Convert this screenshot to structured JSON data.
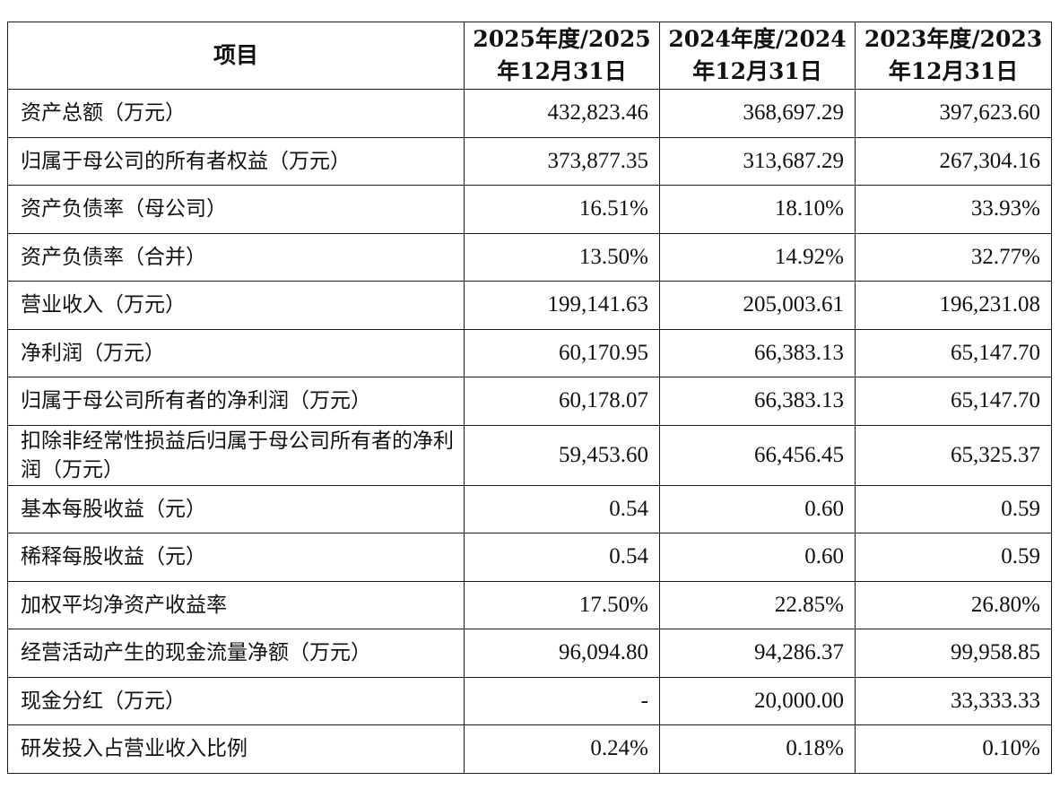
{
  "table": {
    "headers": [
      "项目",
      "2025年度/2025年12月31日",
      "2024年度/2024年12月31日",
      "2023年度/2023年12月31日"
    ],
    "rows": [
      {
        "label": "资产总额（万元）",
        "v2025": "432,823.46",
        "v2024": "368,697.29",
        "v2023": "397,623.60"
      },
      {
        "label": "归属于母公司的所有者权益（万元）",
        "v2025": "373,877.35",
        "v2024": "313,687.29",
        "v2023": "267,304.16"
      },
      {
        "label": "资产负债率（母公司）",
        "v2025": "16.51%",
        "v2024": "18.10%",
        "v2023": "33.93%"
      },
      {
        "label": "资产负债率（合并）",
        "v2025": "13.50%",
        "v2024": "14.92%",
        "v2023": "32.77%"
      },
      {
        "label": "营业收入（万元）",
        "v2025": "199,141.63",
        "v2024": "205,003.61",
        "v2023": "196,231.08"
      },
      {
        "label": "净利润（万元）",
        "v2025": "60,170.95",
        "v2024": "66,383.13",
        "v2023": "65,147.70"
      },
      {
        "label": "归属于母公司所有者的净利润（万元）",
        "v2025": "60,178.07",
        "v2024": "66,383.13",
        "v2023": "65,147.70"
      },
      {
        "label": "扣除非经常性损益后归属于母公司所有者的净利润（万元）",
        "v2025": "59,453.60",
        "v2024": "66,456.45",
        "v2023": "65,325.37"
      },
      {
        "label": "基本每股收益（元）",
        "v2025": "0.54",
        "v2024": "0.60",
        "v2023": "0.59"
      },
      {
        "label": "稀释每股收益（元）",
        "v2025": "0.54",
        "v2024": "0.60",
        "v2023": "0.59"
      },
      {
        "label": "加权平均净资产收益率",
        "v2025": "17.50%",
        "v2024": "22.85%",
        "v2023": "26.80%"
      },
      {
        "label": "经营活动产生的现金流量净额（万元）",
        "v2025": "96,094.80",
        "v2024": "94,286.37",
        "v2023": "99,958.85"
      },
      {
        "label": "现金分红（万元）",
        "v2025": "-",
        "v2024": "20,000.00",
        "v2023": "33,333.33"
      },
      {
        "label": "研发投入占营业收入比例",
        "v2025": "0.24%",
        "v2024": "0.18%",
        "v2023": "0.10%"
      }
    ]
  }
}
